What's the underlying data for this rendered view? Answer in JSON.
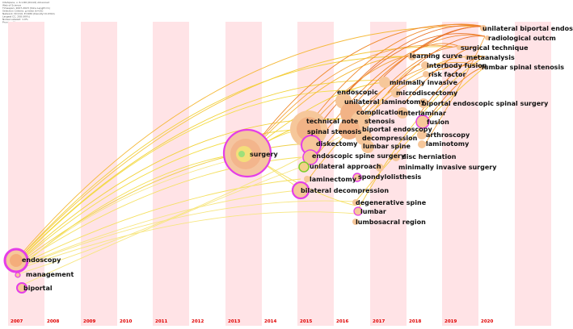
{
  "meta_lines": [
    "CiteSpace, v. 6.1.R6 (64-bit) Advanced",
    "Web of Science",
    "Timespan: 2007-2023 (Slice Length=1)",
    "Selection Criteria: g-index (k=25)",
    "Network: N=210, E=689 (Density=0.0314)",
    "Largest CC: 208 (99%)",
    "Nodes Labeled: 1.0%",
    "Pruning: None"
  ],
  "years": [
    "2007",
    "2008",
    "2009",
    "2010",
    "2011",
    "2012",
    "2013",
    "2014",
    "2015",
    "2016",
    "2017",
    "2018",
    "2019",
    "2020"
  ],
  "colors": {
    "band": "#ffe3e6",
    "year_label": "#e00000",
    "ring": "#e43ee8",
    "node_fill": "#f6c79a",
    "link_yellow": "#f2d23a",
    "link_orange": "#f08a2c"
  },
  "keywords": [
    {
      "label": "unilateral biportal endoscopy",
      "year": "2020"
    },
    {
      "label": "radiological outcm",
      "year": "2020"
    },
    {
      "label": "surgical technique",
      "year": "2020"
    },
    {
      "label": "metaanalysis",
      "year": "2020"
    },
    {
      "label": "lumbar spinal stenosis",
      "year": "2020"
    },
    {
      "label": "learning curve",
      "year": "2018"
    },
    {
      "label": "interbody fusion",
      "year": "2018"
    },
    {
      "label": "risk factor",
      "year": "2018"
    },
    {
      "label": "minimally invasive",
      "year": "2017"
    },
    {
      "label": "endoscopic",
      "year": "2016"
    },
    {
      "label": "microdiscectomy",
      "year": "2017"
    },
    {
      "label": "unilateral laminotomy",
      "year": "2016"
    },
    {
      "label": "biportal endoscopic spinal surgery",
      "year": "2018"
    },
    {
      "label": "complication",
      "year": "2016"
    },
    {
      "label": "interlaminar",
      "year": "2017"
    },
    {
      "label": "technical note",
      "year": "2015"
    },
    {
      "label": "stenosis",
      "year": "2016"
    },
    {
      "label": "fusion",
      "year": "2018"
    },
    {
      "label": "biportal endoscopy",
      "year": "2016"
    },
    {
      "label": "spinal stenosis",
      "year": "2015"
    },
    {
      "label": "arthroscopy",
      "year": "2018"
    },
    {
      "label": "decompression",
      "year": "2016"
    },
    {
      "label": "laminotomy",
      "year": "2018"
    },
    {
      "label": "diskectomy",
      "year": "2015"
    },
    {
      "label": "lumbar spine",
      "year": "2016"
    },
    {
      "label": "surgery",
      "year": "2013"
    },
    {
      "label": "endoscopic spine surgery",
      "year": "2015"
    },
    {
      "label": "disc herniation",
      "year": "2017"
    },
    {
      "label": "unilateral approach",
      "year": "2015"
    },
    {
      "label": "minimally invasive surgery",
      "year": "2017"
    },
    {
      "label": "spondylolisthesis",
      "year": "2016"
    },
    {
      "label": "laminectomy",
      "year": "2015"
    },
    {
      "label": "bilateral decompression",
      "year": "2015"
    },
    {
      "label": "degenerative spine",
      "year": "2016"
    },
    {
      "label": "lumbar",
      "year": "2016"
    },
    {
      "label": "lumbosacral region",
      "year": "2016"
    },
    {
      "label": "endoscopy",
      "year": "2007"
    },
    {
      "label": "management",
      "year": "2007"
    },
    {
      "label": "biportal",
      "year": "2007"
    }
  ]
}
